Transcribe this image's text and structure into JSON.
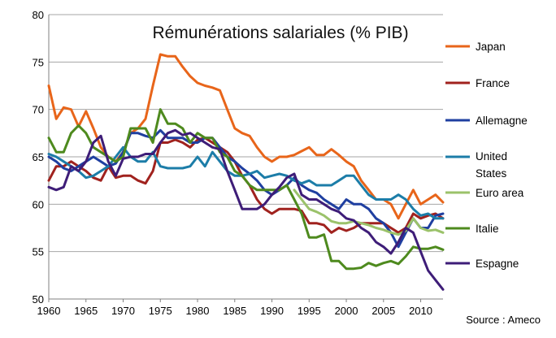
{
  "chart_data": {
    "type": "line",
    "title": "Rémunérations salariales (% PIB)",
    "xlabel": "",
    "ylabel": "",
    "source": "Source : Ameco",
    "xlim": [
      1960,
      2013
    ],
    "ylim": [
      50,
      80
    ],
    "x_ticks": [
      "1960",
      "1965",
      "1970",
      "1975",
      "1980",
      "1985",
      "1990",
      "1995",
      "2000",
      "2005",
      "2010"
    ],
    "y_ticks": [
      "50",
      "55",
      "60",
      "65",
      "70",
      "75",
      "80"
    ],
    "grid": "horizontal",
    "legend_position": "right",
    "x": [
      1960,
      1961,
      1962,
      1963,
      1964,
      1965,
      1966,
      1967,
      1968,
      1969,
      1970,
      1971,
      1972,
      1973,
      1974,
      1975,
      1976,
      1977,
      1978,
      1979,
      1980,
      1981,
      1982,
      1983,
      1984,
      1985,
      1986,
      1987,
      1988,
      1989,
      1990,
      1991,
      1992,
      1993,
      1994,
      1995,
      1996,
      1997,
      1998,
      1999,
      2000,
      2001,
      2002,
      2003,
      2004,
      2005,
      2006,
      2007,
      2008,
      2009,
      2010,
      2011,
      2012,
      2013
    ],
    "series": [
      {
        "name": "Japan",
        "color": "#E8651A",
        "values": [
          72.5,
          69.0,
          70.2,
          70.0,
          68.2,
          69.8,
          68.0,
          66.0,
          65.0,
          64.5,
          65.5,
          67.5,
          68.0,
          69.0,
          72.5,
          75.8,
          75.6,
          75.6,
          74.5,
          73.5,
          72.8,
          72.5,
          72.3,
          72.0,
          70.0,
          68.0,
          67.5,
          67.2,
          66.0,
          65.0,
          64.5,
          65.0,
          65.0,
          65.2,
          65.6,
          66.0,
          65.2,
          65.2,
          65.8,
          65.2,
          64.5,
          64.0,
          62.5,
          61.5,
          60.5,
          60.5,
          60.0,
          58.5,
          60.0,
          61.5,
          60.0,
          60.5,
          61.0,
          60.2
        ]
      },
      {
        "name": "France",
        "color": "#A0221E",
        "values": [
          62.5,
          64.0,
          64.0,
          64.5,
          64.0,
          63.5,
          62.8,
          62.5,
          64.0,
          62.8,
          63.0,
          63.0,
          62.5,
          62.2,
          63.5,
          66.5,
          66.5,
          66.8,
          66.5,
          66.0,
          66.8,
          67.0,
          66.5,
          66.0,
          65.5,
          64.5,
          63.0,
          62.0,
          60.5,
          59.5,
          59.0,
          59.5,
          59.5,
          59.5,
          59.3,
          58.0,
          58.0,
          57.8,
          57.0,
          57.5,
          57.2,
          57.5,
          58.0,
          58.0,
          58.0,
          58.0,
          57.5,
          57.0,
          57.5,
          59.0,
          58.5,
          58.8,
          59.0,
          58.5
        ]
      },
      {
        "name": "Allemagne",
        "color": "#1F3FA0",
        "values": [
          65.0,
          64.5,
          63.8,
          63.5,
          64.0,
          64.5,
          65.0,
          64.5,
          64.0,
          64.3,
          65.5,
          67.5,
          67.5,
          67.2,
          67.0,
          67.8,
          67.0,
          67.0,
          67.0,
          66.5,
          66.5,
          67.0,
          67.0,
          66.0,
          65.0,
          64.5,
          63.8,
          63.2,
          62.5,
          61.5,
          61.0,
          61.5,
          62.0,
          62.8,
          62.0,
          61.5,
          61.2,
          60.5,
          60.0,
          59.5,
          60.5,
          60.0,
          60.0,
          59.5,
          58.5,
          58.0,
          57.0,
          55.5,
          57.0,
          58.5,
          57.5,
          57.5,
          58.8,
          59.0
        ]
      },
      {
        "name": "United States",
        "color": "#1C7DA8",
        "values": [
          65.3,
          65.0,
          64.5,
          64.0,
          63.5,
          62.8,
          63.0,
          63.5,
          64.0,
          65.0,
          66.0,
          65.0,
          64.5,
          64.5,
          65.5,
          64.0,
          63.8,
          63.8,
          63.8,
          64.0,
          65.0,
          64.0,
          65.5,
          64.5,
          63.5,
          63.0,
          63.0,
          63.2,
          63.5,
          62.8,
          63.0,
          63.2,
          63.0,
          62.5,
          62.2,
          62.5,
          62.0,
          62.0,
          62.0,
          62.5,
          63.0,
          63.0,
          62.0,
          61.0,
          60.5,
          60.5,
          60.5,
          61.0,
          60.5,
          59.5,
          58.8,
          59.0,
          58.5,
          58.5
        ]
      },
      {
        "name": "Euro area",
        "color": "#9BC26A",
        "values": [
          null,
          null,
          null,
          null,
          null,
          null,
          null,
          null,
          null,
          null,
          null,
          null,
          null,
          null,
          null,
          null,
          null,
          null,
          null,
          null,
          null,
          null,
          null,
          null,
          null,
          null,
          null,
          null,
          null,
          null,
          null,
          null,
          null,
          61.5,
          60.5,
          59.5,
          59.2,
          58.8,
          58.2,
          58.0,
          58.0,
          58.2,
          58.0,
          57.8,
          57.5,
          57.3,
          57.0,
          56.8,
          57.2,
          58.5,
          57.5,
          57.2,
          57.3,
          57.0
        ]
      },
      {
        "name": "Italie",
        "color": "#4E8A1E",
        "values": [
          67.0,
          65.5,
          65.5,
          67.5,
          68.3,
          67.5,
          66.0,
          65.5,
          65.0,
          64.5,
          65.0,
          68.0,
          68.0,
          68.0,
          66.5,
          70.0,
          68.5,
          68.5,
          68.0,
          66.5,
          67.5,
          67.0,
          67.0,
          65.5,
          65.0,
          63.5,
          63.0,
          62.0,
          61.5,
          61.5,
          61.5,
          61.5,
          62.0,
          60.5,
          59.0,
          56.5,
          56.5,
          56.8,
          54.0,
          54.0,
          53.2,
          53.2,
          53.3,
          53.8,
          53.5,
          53.8,
          54.0,
          53.7,
          54.5,
          55.5,
          55.3,
          55.3,
          55.5,
          55.2
        ]
      },
      {
        "name": "Espagne",
        "color": "#3E1D78",
        "values": [
          61.8,
          61.5,
          61.8,
          64.0,
          63.5,
          64.5,
          66.5,
          67.2,
          64.5,
          63.0,
          64.8,
          65.0,
          65.0,
          65.3,
          65.3,
          66.5,
          67.5,
          67.8,
          67.3,
          67.5,
          67.0,
          66.5,
          66.0,
          65.8,
          63.5,
          61.5,
          59.5,
          59.5,
          59.5,
          60.0,
          61.0,
          61.8,
          62.8,
          63.2,
          61.0,
          60.5,
          60.5,
          60.0,
          59.5,
          59.2,
          58.5,
          58.3,
          57.5,
          57.0,
          56.0,
          55.5,
          54.8,
          56.0,
          57.5,
          57.0,
          55.0,
          53.0,
          52.0,
          51.0
        ]
      }
    ]
  }
}
